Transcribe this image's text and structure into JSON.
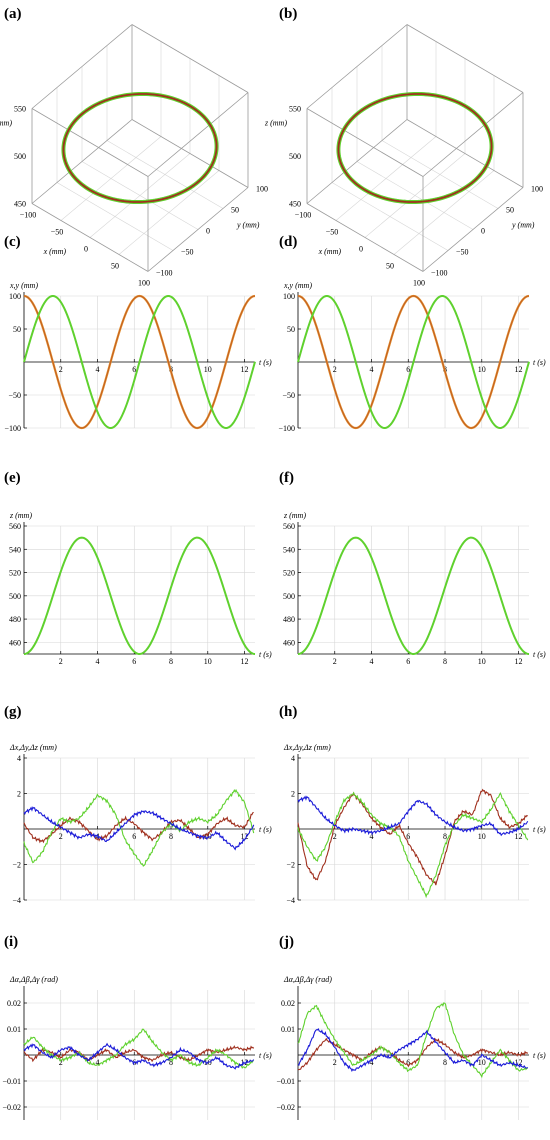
{
  "panel_labels": [
    "(a)",
    "(b)",
    "(c)",
    "(d)",
    "(e)",
    "(f)",
    "(g)",
    "(h)",
    "(i)",
    "(j)"
  ],
  "colors": {
    "x": "#a0301e",
    "y": "#5fd12e",
    "z": "#1a1ad8",
    "x_target": "#e08a2a",
    "axis": "#000000",
    "grid": "#d7d7d7",
    "box": "#9a9a9a"
  },
  "chart_data": [
    {
      "panel": "(a)",
      "type": "line",
      "projection": "3d",
      "axes": {
        "x": {
          "label": "x (mm)",
          "ticks": [
            "−100",
            "−50",
            "0",
            "50",
            "100"
          ],
          "range": [
            -100,
            100
          ]
        },
        "y": {
          "label": "y (mm)",
          "ticks": [
            "−100",
            "−50",
            "0",
            "50",
            "100"
          ],
          "range": [
            -100,
            100
          ]
        },
        "z": {
          "label": "z (mm)",
          "ticks": [
            "450",
            "500",
            "550"
          ],
          "range": [
            450,
            550
          ]
        }
      },
      "series": [
        {
          "key": "reference",
          "x_amp": 100,
          "y_amp": 100,
          "z_mid": 500,
          "z_amp": 50
        },
        {
          "key": "measured",
          "x_amp": 100,
          "y_amp": 100,
          "z_mid": 500,
          "z_amp": 50
        }
      ],
      "grid": true
    },
    {
      "panel": "(b)",
      "type": "line",
      "projection": "3d",
      "axes": {
        "x": {
          "label": "x (mm)",
          "ticks": [
            "−100",
            "−50",
            "0",
            "50",
            "100"
          ],
          "range": [
            -100,
            100
          ]
        },
        "y": {
          "label": "y (mm)",
          "ticks": [
            "−100",
            "−50",
            "0",
            "50",
            "100"
          ],
          "range": [
            -100,
            100
          ]
        },
        "z": {
          "label": "z (mm)",
          "ticks": [
            "450",
            "500",
            "550"
          ],
          "range": [
            450,
            550
          ]
        }
      },
      "series": [
        {
          "key": "reference",
          "x_amp": 100,
          "y_amp": 100,
          "z_mid": 500,
          "z_amp": 50
        },
        {
          "key": "measured",
          "x_amp": 100,
          "y_amp": 100,
          "z_mid": 500,
          "z_amp": 50
        }
      ],
      "grid": true
    },
    {
      "panel": "(c)",
      "type": "line",
      "ylabel": "x,y (mm)",
      "xlabel": "t (s)",
      "xlim": [
        0,
        12.57
      ],
      "ylim": [
        -100,
        100
      ],
      "xticks": [
        2,
        4,
        6,
        8,
        10,
        12
      ],
      "yticks": [
        -100,
        -50,
        50,
        100
      ],
      "grid": true,
      "series": [
        {
          "key": "x",
          "func": "100*cos(t)"
        },
        {
          "key": "y",
          "func": "100*sin(t)"
        }
      ]
    },
    {
      "panel": "(d)",
      "type": "line",
      "ylabel": "x,y (mm)",
      "xlabel": "t (s)",
      "xlim": [
        0,
        12.57
      ],
      "ylim": [
        -100,
        100
      ],
      "xticks": [
        2,
        4,
        6,
        8,
        10,
        12
      ],
      "yticks": [
        -100,
        -50,
        50,
        100
      ],
      "grid": true,
      "series": [
        {
          "key": "x",
          "func": "100*cos(t)"
        },
        {
          "key": "y",
          "func": "100*sin(t)"
        }
      ]
    },
    {
      "panel": "(e)",
      "type": "line",
      "ylabel": "z (mm)",
      "xlabel": "t (s)",
      "xlim": [
        0,
        12.57
      ],
      "ylim": [
        450,
        560
      ],
      "xticks": [
        2,
        4,
        6,
        8,
        10,
        12
      ],
      "yticks": [
        460,
        480,
        500,
        520,
        540,
        560
      ],
      "grid": true,
      "series": [
        {
          "key": "z",
          "func": "500-50*cos(t)"
        }
      ]
    },
    {
      "panel": "(f)",
      "type": "line",
      "ylabel": "z (mm)",
      "xlabel": "t (s)",
      "xlim": [
        0,
        12.57
      ],
      "ylim": [
        450,
        560
      ],
      "xticks": [
        2,
        4,
        6,
        8,
        10,
        12
      ],
      "yticks": [
        460,
        480,
        500,
        520,
        540,
        560
      ],
      "grid": true,
      "series": [
        {
          "key": "z",
          "func": "500-50*cos(t)"
        }
      ]
    },
    {
      "panel": "(g)",
      "type": "line",
      "ylabel": "Δx,Δy,Δz (mm)",
      "xlabel": "t (s)",
      "xlim": [
        0,
        12.57
      ],
      "ylim": [
        -4,
        4
      ],
      "xticks": [
        2,
        4,
        6,
        8,
        10,
        12
      ],
      "yticks": [
        -4,
        -2,
        2,
        4
      ],
      "grid": true,
      "series": [
        {
          "key": "x",
          "t": [
            0,
            0.5,
            1,
            1.5,
            2,
            2.5,
            3,
            3.5,
            4,
            4.5,
            5,
            5.5,
            6,
            6.5,
            7,
            7.5,
            8,
            8.5,
            9,
            9.5,
            10,
            10.5,
            11,
            11.5,
            12,
            12.5
          ],
          "values": [
            0.3,
            -0.5,
            -0.7,
            -0.3,
            0.2,
            0.6,
            0.4,
            -0.1,
            -0.6,
            -0.4,
            0.2,
            0.6,
            0.3,
            -0.2,
            -0.6,
            -0.2,
            0.4,
            0.5,
            0.0,
            -0.5,
            -0.3,
            0.3,
            0.6,
            0.2,
            0.1,
            1.0
          ]
        },
        {
          "key": "y",
          "t": [
            0,
            0.5,
            1,
            1.5,
            2,
            2.5,
            3,
            3.5,
            4,
            4.5,
            5,
            5.5,
            6,
            6.5,
            7,
            7.5,
            8,
            8.5,
            9,
            9.5,
            10,
            10.5,
            11,
            11.5,
            12,
            12.5
          ],
          "values": [
            -0.8,
            -1.9,
            -1.3,
            -0.2,
            0.6,
            0.4,
            0.6,
            1.2,
            1.9,
            1.6,
            0.8,
            -0.6,
            -1.4,
            -2.1,
            -1.2,
            -0.2,
            0.3,
            -0.1,
            0.4,
            0.6,
            0.4,
            0.8,
            1.6,
            2.2,
            1.5,
            -0.2
          ]
        },
        {
          "key": "z",
          "t": [
            0,
            0.5,
            1,
            1.5,
            2,
            2.5,
            3,
            3.5,
            4,
            4.5,
            5,
            5.5,
            6,
            6.5,
            7,
            7.5,
            8,
            8.5,
            9,
            9.5,
            10,
            10.5,
            11,
            11.5,
            12,
            12.5
          ],
          "values": [
            0.9,
            1.2,
            0.8,
            0.4,
            0.1,
            -0.2,
            -0.5,
            -0.3,
            -0.4,
            -0.7,
            -0.2,
            0.3,
            0.8,
            1.0,
            0.9,
            0.6,
            0.3,
            0.0,
            -0.2,
            -0.4,
            -0.5,
            -0.2,
            -0.7,
            -1.1,
            -0.6,
            0.2
          ]
        }
      ]
    },
    {
      "panel": "(h)",
      "type": "line",
      "ylabel": "Δx,Δy,Δz (mm)",
      "xlabel": "t (s)",
      "xlim": [
        0,
        12.57
      ],
      "ylim": [
        -4,
        4
      ],
      "xticks": [
        2,
        4,
        6,
        8,
        10,
        12
      ],
      "yticks": [
        -4,
        -2,
        2,
        4
      ],
      "grid": true,
      "series": [
        {
          "key": "x",
          "t": [
            0,
            0.5,
            1,
            1.5,
            2,
            2.5,
            3,
            3.5,
            4,
            4.5,
            5,
            5.5,
            6,
            6.5,
            7,
            7.5,
            8,
            8.5,
            9,
            9.5,
            10,
            10.5,
            11,
            11.5,
            12,
            12.5
          ],
          "values": [
            0.3,
            -2.1,
            -2.9,
            -1.8,
            0.2,
            1.2,
            2.0,
            1.4,
            0.6,
            0.1,
            -0.3,
            0.2,
            -0.8,
            -1.6,
            -2.6,
            -3.1,
            -1.5,
            0.4,
            1.0,
            0.8,
            2.2,
            1.9,
            0.6,
            0.1,
            0.3,
            0.8
          ]
        },
        {
          "key": "y",
          "t": [
            0,
            0.5,
            1,
            1.5,
            2,
            2.5,
            3,
            3.5,
            4,
            4.5,
            5,
            5.5,
            6,
            6.5,
            7,
            7.5,
            8,
            8.5,
            9,
            9.5,
            10,
            10.5,
            11,
            11.5,
            12,
            12.5
          ],
          "values": [
            0.0,
            -1.0,
            -1.8,
            -1.0,
            0.4,
            1.6,
            2.0,
            1.5,
            0.8,
            0.3,
            0.1,
            -0.4,
            -1.8,
            -2.8,
            -3.8,
            -2.6,
            -0.9,
            0.2,
            0.8,
            0.6,
            0.4,
            1.1,
            2.0,
            1.0,
            0.2,
            -0.6
          ]
        },
        {
          "key": "z",
          "t": [
            0,
            0.5,
            1,
            1.5,
            2,
            2.5,
            3,
            3.5,
            4,
            4.5,
            5,
            5.5,
            6,
            6.5,
            7,
            7.5,
            8,
            8.5,
            9,
            9.5,
            10,
            10.5,
            11,
            11.5,
            12,
            12.5
          ],
          "values": [
            1.6,
            1.8,
            1.2,
            0.6,
            0.2,
            -0.1,
            0.0,
            -0.1,
            -0.2,
            -0.1,
            0.1,
            0.3,
            1.0,
            1.6,
            1.4,
            0.8,
            0.4,
            0.1,
            -0.1,
            0.0,
            0.2,
            0.3,
            -0.3,
            -0.2,
            0.0,
            0.4
          ]
        }
      ]
    },
    {
      "panel": "(i)",
      "type": "line",
      "ylabel": "Δα,Δβ,Δγ (rad)",
      "xlabel": "t (s)",
      "xlim": [
        0,
        12.57
      ],
      "ylim": [
        -0.025,
        0.025
      ],
      "xticks": [
        2,
        4,
        6,
        8,
        10,
        12
      ],
      "yticks": [
        -0.02,
        -0.01,
        0.01,
        0.02
      ],
      "ytick_labels": [
        "−0.02",
        "−0.01",
        "0.01",
        "0.02"
      ],
      "grid": true,
      "series": [
        {
          "key": "x",
          "t": [
            0,
            0.5,
            1,
            1.5,
            2,
            2.5,
            3,
            3.5,
            4,
            4.5,
            5,
            5.5,
            6,
            6.5,
            7,
            7.5,
            8,
            8.5,
            9,
            9.5,
            10,
            10.5,
            11,
            11.5,
            12,
            12.5
          ],
          "values": [
            0.001,
            -0.002,
            0.002,
            0.001,
            -0.001,
            0.002,
            0.001,
            -0.002,
            0.0,
            0.002,
            -0.001,
            0.001,
            0.002,
            -0.001,
            -0.002,
            0.0,
            0.001,
            -0.001,
            -0.002,
            0.0,
            0.002,
            0.001,
            0.002,
            0.003,
            0.002,
            0.003
          ]
        },
        {
          "key": "y",
          "t": [
            0,
            0.5,
            1,
            1.5,
            2,
            2.5,
            3,
            3.5,
            4,
            4.5,
            5,
            5.5,
            6,
            6.5,
            7,
            7.5,
            8,
            8.5,
            9,
            9.5,
            10,
            10.5,
            11,
            11.5,
            12,
            12.5
          ],
          "values": [
            0.004,
            0.007,
            0.003,
            0.0,
            -0.002,
            -0.001,
            0.001,
            -0.003,
            -0.004,
            -0.002,
            0.0,
            0.004,
            0.006,
            0.01,
            0.005,
            0.001,
            -0.002,
            0.0,
            -0.003,
            -0.004,
            -0.001,
            0.002,
            0.0,
            -0.003,
            -0.005,
            -0.002
          ]
        },
        {
          "key": "z",
          "t": [
            0,
            0.5,
            1,
            1.5,
            2,
            2.5,
            3,
            3.5,
            4,
            4.5,
            5,
            5.5,
            6,
            6.5,
            7,
            7.5,
            8,
            8.5,
            9,
            9.5,
            10,
            10.5,
            11,
            11.5,
            12,
            12.5
          ],
          "values": [
            0.002,
            0.004,
            0.001,
            -0.001,
            0.002,
            0.003,
            0.0,
            -0.002,
            0.001,
            0.004,
            0.002,
            -0.001,
            -0.003,
            -0.002,
            -0.004,
            -0.003,
            -0.001,
            0.002,
            0.001,
            -0.002,
            -0.003,
            -0.001,
            -0.004,
            -0.005,
            -0.003,
            -0.002
          ]
        }
      ]
    },
    {
      "panel": "(j)",
      "type": "line",
      "ylabel": "Δα,Δβ,Δγ (rad)",
      "xlabel": "t (s)",
      "xlim": [
        0,
        12.57
      ],
      "ylim": [
        -0.025,
        0.025
      ],
      "xticks": [
        2,
        4,
        6,
        8,
        10,
        12
      ],
      "yticks": [
        -0.02,
        -0.01,
        0.01,
        0.02
      ],
      "ytick_labels": [
        "−0.02",
        "−0.01",
        "0.01",
        "0.02"
      ],
      "grid": true,
      "series": [
        {
          "key": "x",
          "t": [
            0,
            0.5,
            1,
            1.5,
            2,
            2.5,
            3,
            3.5,
            4,
            4.5,
            5,
            5.5,
            6,
            6.5,
            7,
            7.5,
            8,
            8.5,
            9,
            9.5,
            10,
            10.5,
            11,
            11.5,
            12,
            12.5
          ],
          "values": [
            -0.006,
            -0.003,
            0.002,
            0.006,
            0.004,
            0.002,
            0.0,
            -0.002,
            0.001,
            0.003,
            0.001,
            -0.002,
            -0.004,
            -0.002,
            0.003,
            0.006,
            0.004,
            0.001,
            -0.001,
            0.0,
            0.002,
            0.001,
            0.0,
            0.001,
            0.0,
            0.001
          ]
        },
        {
          "key": "y",
          "t": [
            0,
            0.5,
            1,
            1.5,
            2,
            2.5,
            3,
            3.5,
            4,
            4.5,
            5,
            5.5,
            6,
            6.5,
            7,
            7.5,
            8,
            8.5,
            9,
            9.5,
            10,
            10.5,
            11,
            11.5,
            12,
            12.5
          ],
          "values": [
            0.004,
            0.016,
            0.019,
            0.012,
            0.006,
            0.001,
            -0.004,
            -0.002,
            0.0,
            0.003,
            0.001,
            -0.003,
            -0.006,
            -0.004,
            0.008,
            0.018,
            0.02,
            0.008,
            0.0,
            -0.004,
            -0.008,
            -0.003,
            0.002,
            -0.002,
            -0.006,
            -0.005
          ]
        },
        {
          "key": "z",
          "t": [
            0,
            0.5,
            1,
            1.5,
            2,
            2.5,
            3,
            3.5,
            4,
            4.5,
            5,
            5.5,
            6,
            6.5,
            7,
            7.5,
            8,
            8.5,
            9,
            9.5,
            10,
            10.5,
            11,
            11.5,
            12,
            12.5
          ],
          "values": [
            -0.004,
            0.002,
            0.01,
            0.008,
            0.003,
            -0.003,
            -0.006,
            -0.004,
            -0.002,
            0.0,
            -0.001,
            0.002,
            0.004,
            0.006,
            0.009,
            0.005,
            0.001,
            -0.003,
            -0.002,
            -0.004,
            0.0,
            -0.002,
            -0.004,
            -0.003,
            -0.004,
            -0.005
          ]
        }
      ]
    }
  ]
}
